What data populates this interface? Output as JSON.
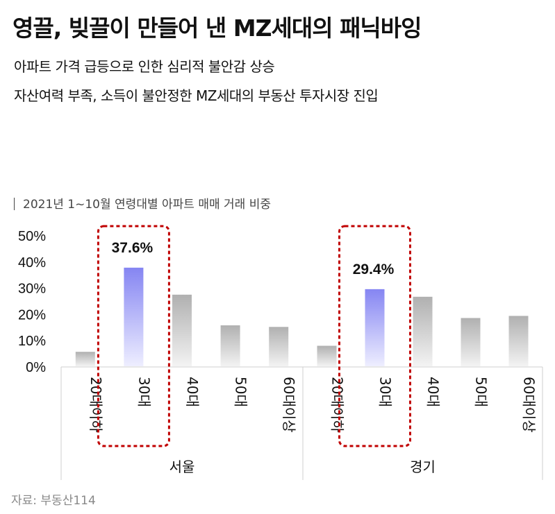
{
  "headline": "영끌, 빚끌이 만들어 낸 MZ세대의 패닉바잉",
  "subtitles": [
    "아파트 가격 급등으로 인한 심리적 불안감 상승",
    "자산여력 부족, 소득이 불안정한 MZ세대의 부동산 투자시장 진입"
  ],
  "source": "자료: 부동산114",
  "colors": {
    "highlight_bar": "#8b8bf5",
    "normal_bar": "#b8b8b8",
    "highlight_box": "#c00000"
  },
  "chart_data": {
    "type": "bar",
    "title": "2021년 1~10월 연령대별 아파트 매매 거래 비중",
    "ylim": [
      0,
      50
    ],
    "ytick_labels": [
      "0%",
      "10%",
      "20%",
      "30%",
      "40%",
      "50%"
    ],
    "yticks": [
      0,
      10,
      20,
      30,
      40,
      50
    ],
    "categories": [
      "20대이하",
      "30대",
      "40대",
      "50대",
      "60대이상"
    ],
    "groups": [
      {
        "name": "서울",
        "values": [
          5.5,
          37.6,
          27.3,
          15.6,
          15.0
        ],
        "highlight_index": 1,
        "highlight_label": "37.6%"
      },
      {
        "name": "경기",
        "values": [
          7.8,
          29.4,
          26.5,
          18.4,
          19.2
        ],
        "highlight_index": 1,
        "highlight_label": "29.4%"
      }
    ],
    "grid": false,
    "legend": "none"
  }
}
